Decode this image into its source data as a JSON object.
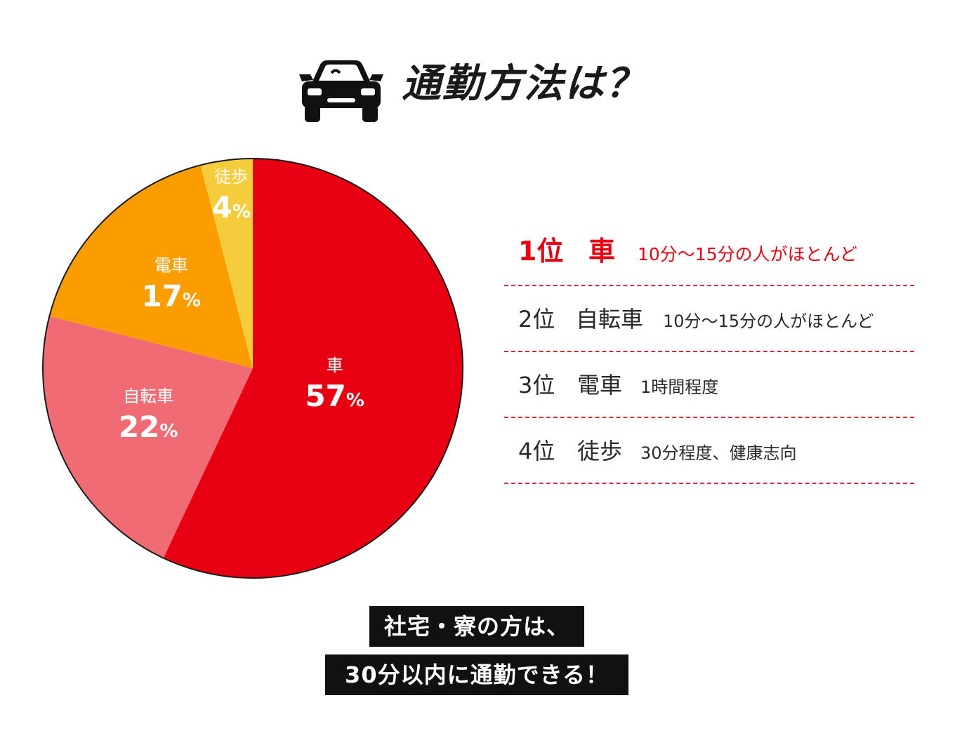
{
  "header": {
    "title": "通勤方法は？",
    "icon": "car-icon"
  },
  "chart_data": {
    "type": "pie",
    "unit": "%",
    "slices": [
      {
        "label": "車",
        "value": 57,
        "color": "#e60012"
      },
      {
        "label": "自転車",
        "value": 22,
        "color": "#f06b74"
      },
      {
        "label": "電車",
        "value": 17,
        "color": "#fb9c00"
      },
      {
        "label": "徒歩",
        "value": 4,
        "color": "#f4cc3c"
      }
    ]
  },
  "ranking": [
    {
      "rank": "1位",
      "name": "車",
      "note": "10分～15分の人がほとんど"
    },
    {
      "rank": "2位",
      "name": "自転車",
      "note": "10分～15分の人がほとんど"
    },
    {
      "rank": "3位",
      "name": "電車",
      "note": "1時間程度"
    },
    {
      "rank": "4位",
      "name": "徒歩",
      "note": "30分程度、健康志向"
    }
  ],
  "banner": {
    "line1": "社宅・寮の方は、",
    "line2": "30分以内に通勤できる！"
  },
  "colors": {
    "accent": "#e60012",
    "divider": "#e0283a",
    "banner_bg": "#111111"
  }
}
